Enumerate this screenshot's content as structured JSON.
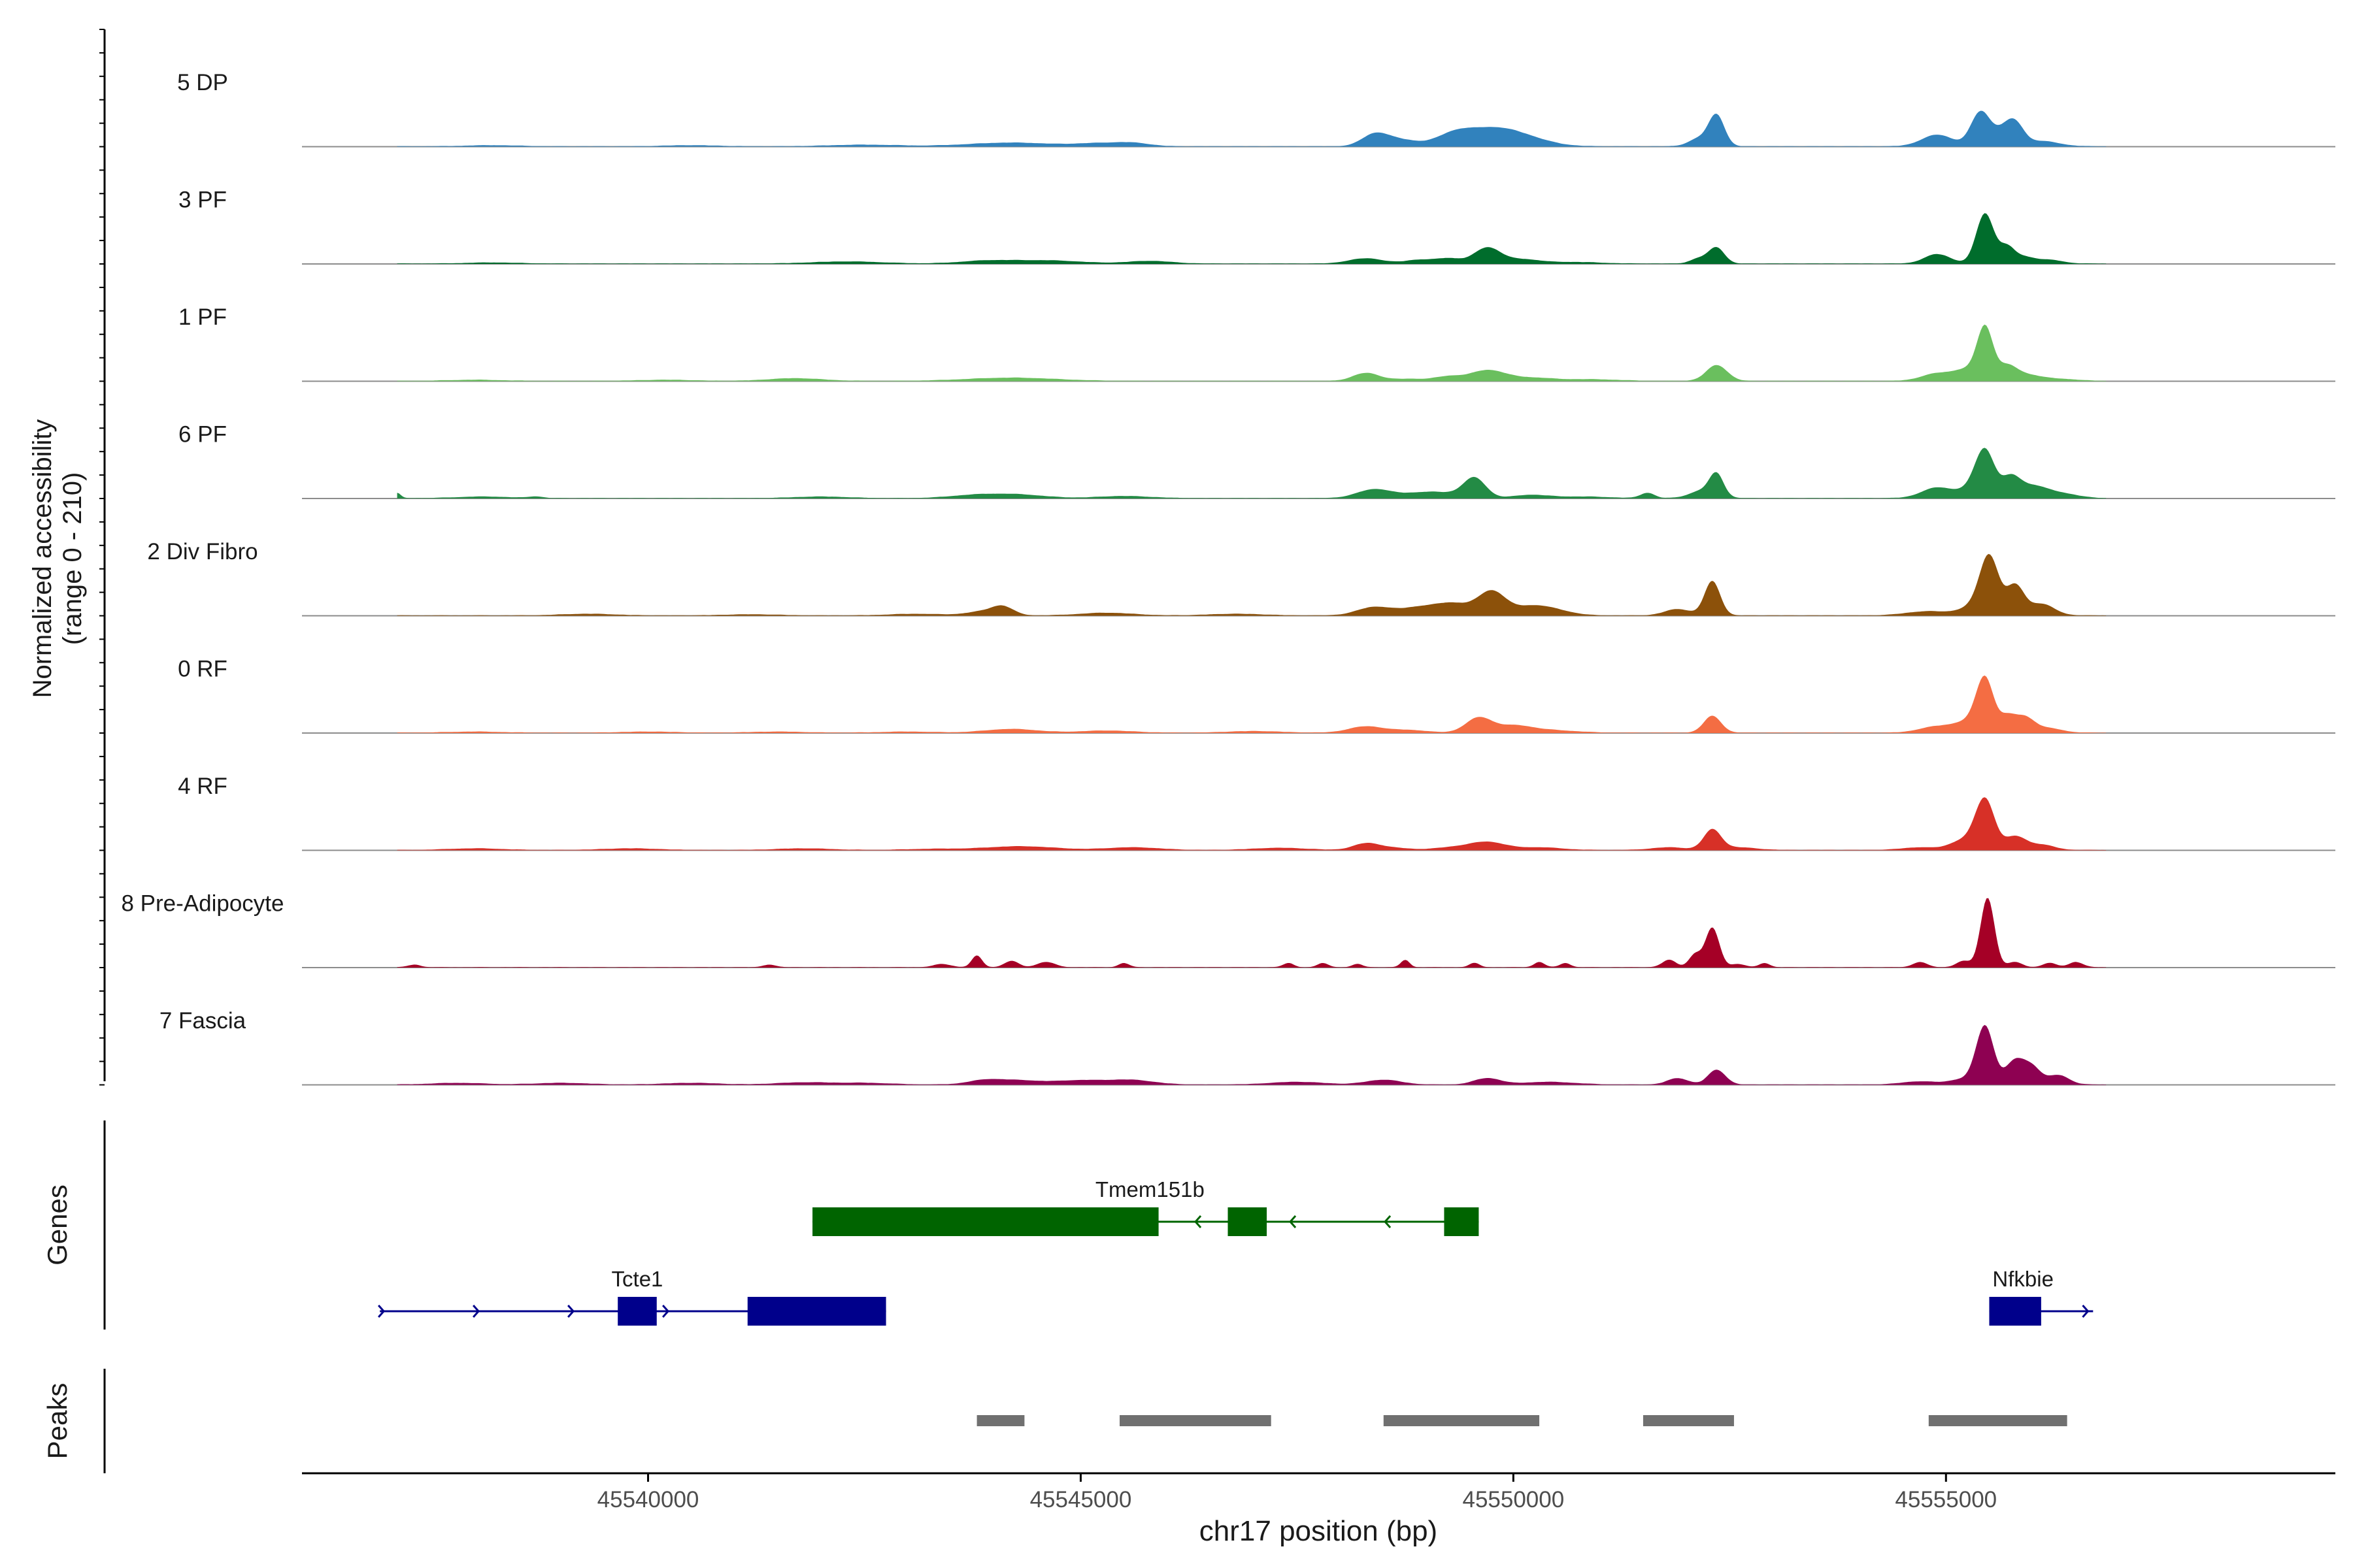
{
  "chart_data": {
    "type": "area",
    "ylabel_line1": "Normalized accessibility",
    "ylabel_line2": "(range 0 - 210)",
    "ylim": [
      0,
      210
    ],
    "xlabel": "chr17 position (bp)",
    "xlim": [
      45536000,
      45559500
    ],
    "x_ticks": [
      45540000,
      45545000,
      45550000,
      45555000
    ],
    "x_tick_labels": [
      "45540000",
      "45545000",
      "45550000",
      "45555000"
    ],
    "series": [
      {
        "name": "5 DP",
        "color": "#3182bd",
        "peaks": [
          [
            45538200,
            2,
            300
          ],
          [
            45540500,
            2,
            300
          ],
          [
            45542500,
            3,
            400
          ],
          [
            45544200,
            7,
            500
          ],
          [
            45545200,
            5,
            250
          ],
          [
            45545600,
            6,
            200
          ],
          [
            45548400,
            22,
            150
          ],
          [
            45548700,
            12,
            200
          ],
          [
            45549300,
            18,
            200
          ],
          [
            45549700,
            28,
            300
          ],
          [
            45550100,
            15,
            300
          ],
          [
            45552150,
            15,
            120
          ],
          [
            45552350,
            58,
            90
          ],
          [
            45554900,
            22,
            180
          ],
          [
            45555400,
            65,
            110
          ],
          [
            45555650,
            25,
            110
          ],
          [
            45555800,
            38,
            100
          ],
          [
            45556100,
            10,
            200
          ]
        ]
      },
      {
        "name": "3 PF",
        "color": "#006d2c",
        "peaks": [
          [
            45538200,
            2,
            300
          ],
          [
            45542300,
            4,
            400
          ],
          [
            45543900,
            5,
            300
          ],
          [
            45544600,
            6,
            400
          ],
          [
            45545800,
            5,
            250
          ],
          [
            45548300,
            10,
            200
          ],
          [
            45548900,
            7,
            150
          ],
          [
            45549250,
            10,
            150
          ],
          [
            45549700,
            30,
            150
          ],
          [
            45550100,
            8,
            200
          ],
          [
            45550700,
            3,
            300
          ],
          [
            45552150,
            10,
            100
          ],
          [
            45552350,
            30,
            90
          ],
          [
            45554900,
            18,
            150
          ],
          [
            45555450,
            95,
            100
          ],
          [
            45555700,
            30,
            90
          ],
          [
            45555900,
            12,
            120
          ],
          [
            45556200,
            7,
            150
          ]
        ]
      },
      {
        "name": "1 PF",
        "color": "#6abf5e",
        "peaks": [
          [
            45538000,
            2,
            300
          ],
          [
            45540200,
            2,
            300
          ],
          [
            45541700,
            5,
            300
          ],
          [
            45544200,
            6,
            500
          ],
          [
            45548300,
            15,
            150
          ],
          [
            45548800,
            4,
            200
          ],
          [
            45549250,
            8,
            150
          ],
          [
            45549700,
            20,
            200
          ],
          [
            45550200,
            6,
            250
          ],
          [
            45550900,
            3,
            300
          ],
          [
            45552350,
            30,
            120
          ],
          [
            45554900,
            14,
            180
          ],
          [
            45555250,
            20,
            150
          ],
          [
            45555450,
            95,
            90
          ],
          [
            45555700,
            28,
            120
          ],
          [
            45555950,
            10,
            150
          ],
          [
            45556300,
            4,
            200
          ]
        ]
      },
      {
        "name": "6 PF",
        "color": "#238b45",
        "peaks": [
          [
            45537100,
            10,
            40
          ],
          [
            45538100,
            3,
            300
          ],
          [
            45538700,
            3,
            80
          ],
          [
            45542000,
            3,
            300
          ],
          [
            45543800,
            6,
            300
          ],
          [
            45544300,
            6,
            300
          ],
          [
            45545500,
            4,
            300
          ],
          [
            45548400,
            17,
            200
          ],
          [
            45548900,
            8,
            200
          ],
          [
            45549200,
            8,
            200
          ],
          [
            45549550,
            38,
            130
          ],
          [
            45550200,
            6,
            200
          ],
          [
            45550800,
            3,
            300
          ],
          [
            45551550,
            10,
            80
          ],
          [
            45552200,
            15,
            150
          ],
          [
            45552350,
            40,
            80
          ],
          [
            45554900,
            20,
            180
          ],
          [
            45555300,
            15,
            150
          ],
          [
            45555450,
            85,
            110
          ],
          [
            45555750,
            38,
            110
          ],
          [
            45556000,
            20,
            150
          ],
          [
            45556300,
            10,
            200
          ]
        ]
      },
      {
        "name": "2 Div Fibro",
        "color": "#8c510a",
        "peaks": [
          [
            45539300,
            3,
            300
          ],
          [
            45541200,
            2,
            300
          ],
          [
            45543100,
            3,
            300
          ],
          [
            45543900,
            8,
            200
          ],
          [
            45544100,
            14,
            120
          ],
          [
            45545300,
            5,
            300
          ],
          [
            45546800,
            3,
            300
          ],
          [
            45548400,
            16,
            200
          ],
          [
            45548900,
            14,
            200
          ],
          [
            45549300,
            22,
            200
          ],
          [
            45549750,
            45,
            160
          ],
          [
            45550200,
            16,
            200
          ],
          [
            45550500,
            8,
            200
          ],
          [
            45551900,
            12,
            150
          ],
          [
            45552300,
            65,
            90
          ],
          [
            45554800,
            8,
            250
          ],
          [
            45555300,
            14,
            150
          ],
          [
            45555500,
            110,
            110
          ],
          [
            45555800,
            55,
            100
          ],
          [
            45556100,
            22,
            150
          ]
        ]
      },
      {
        "name": "0 RF",
        "color": "#f46d43",
        "peaks": [
          [
            45538000,
            2,
            300
          ],
          [
            45540000,
            2,
            300
          ],
          [
            45541500,
            2,
            300
          ],
          [
            45543000,
            2,
            300
          ],
          [
            45544200,
            7,
            300
          ],
          [
            45545300,
            4,
            300
          ],
          [
            45547000,
            3,
            300
          ],
          [
            45548300,
            12,
            200
          ],
          [
            45548800,
            5,
            200
          ],
          [
            45549600,
            28,
            150
          ],
          [
            45550000,
            12,
            200
          ],
          [
            45550400,
            5,
            300
          ],
          [
            45552300,
            32,
            100
          ],
          [
            45554900,
            12,
            200
          ],
          [
            45555250,
            18,
            150
          ],
          [
            45555450,
            100,
            100
          ],
          [
            45555700,
            25,
            90
          ],
          [
            45555900,
            30,
            120
          ],
          [
            45556200,
            8,
            150
          ]
        ]
      },
      {
        "name": "4 RF",
        "color": "#d73027",
        "peaks": [
          [
            45538000,
            3,
            300
          ],
          [
            45539800,
            3,
            300
          ],
          [
            45541800,
            3,
            300
          ],
          [
            45543300,
            2,
            300
          ],
          [
            45544300,
            7,
            400
          ],
          [
            45545600,
            5,
            300
          ],
          [
            45547300,
            4,
            300
          ],
          [
            45548300,
            12,
            150
          ],
          [
            45548600,
            4,
            200
          ],
          [
            45549300,
            5,
            200
          ],
          [
            45549700,
            15,
            200
          ],
          [
            45550300,
            5,
            250
          ],
          [
            45551800,
            5,
            200
          ],
          [
            45552300,
            38,
            100
          ],
          [
            45552600,
            5,
            200
          ],
          [
            45554700,
            5,
            200
          ],
          [
            45555200,
            18,
            150
          ],
          [
            45555450,
            95,
            110
          ],
          [
            45555800,
            25,
            120
          ],
          [
            45556100,
            10,
            150
          ]
        ]
      },
      {
        "name": "8 Pre-Adipocyte",
        "color": "#a50026",
        "peaks": [
          [
            45537300,
            5,
            70
          ],
          [
            45541400,
            5,
            70
          ],
          [
            45543400,
            6,
            100
          ],
          [
            45543800,
            22,
            60
          ],
          [
            45544200,
            12,
            80
          ],
          [
            45544600,
            10,
            100
          ],
          [
            45545500,
            8,
            60
          ],
          [
            45547400,
            8,
            60
          ],
          [
            45547800,
            8,
            60
          ],
          [
            45548200,
            6,
            60
          ],
          [
            45548750,
            14,
            50
          ],
          [
            45549550,
            8,
            60
          ],
          [
            45550300,
            10,
            60
          ],
          [
            45550600,
            8,
            60
          ],
          [
            45551800,
            14,
            80
          ],
          [
            45552100,
            24,
            70
          ],
          [
            45552300,
            75,
            80
          ],
          [
            45552600,
            6,
            80
          ],
          [
            45552900,
            8,
            60
          ],
          [
            45554700,
            10,
            80
          ],
          [
            45555200,
            12,
            80
          ],
          [
            45555480,
            132,
            80
          ],
          [
            45555800,
            10,
            80
          ],
          [
            45556200,
            8,
            80
          ],
          [
            45556500,
            10,
            80
          ]
        ]
      },
      {
        "name": "7 Fascia",
        "color": "#8e0152",
        "peaks": [
          [
            45537800,
            3,
            300
          ],
          [
            45539000,
            3,
            300
          ],
          [
            45540500,
            3,
            300
          ],
          [
            45541800,
            4,
            300
          ],
          [
            45542500,
            3,
            300
          ],
          [
            45543900,
            8,
            200
          ],
          [
            45544300,
            7,
            250
          ],
          [
            45545000,
            8,
            300
          ],
          [
            45545600,
            8,
            250
          ],
          [
            45547500,
            5,
            300
          ],
          [
            45548500,
            9,
            200
          ],
          [
            45549700,
            12,
            150
          ],
          [
            45550400,
            5,
            300
          ],
          [
            45551900,
            12,
            120
          ],
          [
            45552350,
            28,
            100
          ],
          [
            45554700,
            6,
            200
          ],
          [
            45555200,
            10,
            150
          ],
          [
            45555450,
            110,
            100
          ],
          [
            45555800,
            45,
            110
          ],
          [
            45556000,
            30,
            100
          ],
          [
            45556300,
            18,
            120
          ]
        ]
      }
    ],
    "genes_track_label": "Genes",
    "genes": [
      {
        "name": "Tmem151b",
        "strand": "-",
        "color": "#006400",
        "row": 0,
        "start": 45541900,
        "end": 45549600,
        "exons": [
          [
            45541900,
            45545900
          ],
          [
            45546700,
            45547150
          ],
          [
            45549200,
            45549600
          ]
        ]
      },
      {
        "name": "Tcte1",
        "strand": "+",
        "color": "#00008b",
        "row": 1,
        "start": 45536900,
        "end": 45542750,
        "exons": [
          [
            45539650,
            45540100
          ],
          [
            45541150,
            45542750
          ]
        ]
      },
      {
        "name": "Nfkbie",
        "strand": "+",
        "color": "#00008b",
        "row": 1,
        "start": 45555500,
        "end": 45556700,
        "exons": [
          [
            45555500,
            45556100
          ]
        ]
      }
    ],
    "peaks_track_label": "Peaks",
    "peaks_color": "#707070",
    "peak_regions": [
      [
        45543800,
        45544350
      ],
      [
        45545450,
        45547200
      ],
      [
        45548500,
        45550300
      ],
      [
        45551500,
        45552550
      ],
      [
        45554800,
        45556400
      ]
    ]
  }
}
